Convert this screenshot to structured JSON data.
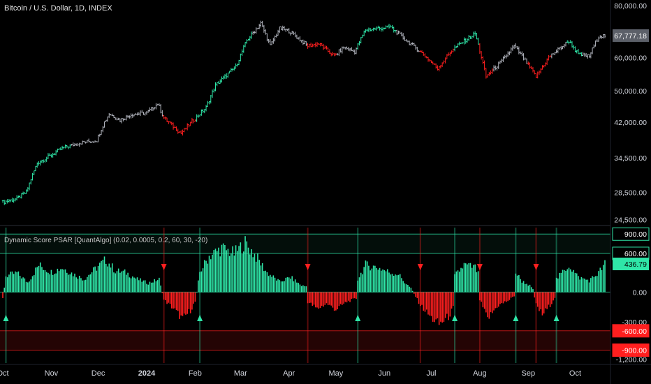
{
  "symbol_title": "Bitcoin / U.S. Dollar, 1D, INDEX",
  "indicator_title": "Dynamic Score PSAR [QuantAlgo] (0.02, 0.0005, 0.2, 60, 30, -20)",
  "colors": {
    "bull": "#2fe6a8",
    "bear": "#ff1f1f",
    "neutral": "#b2b5be",
    "axis_text": "#d1d4dc",
    "last_price_bg": "#5c6069"
  },
  "chart_data": [
    {
      "type": "ohlc",
      "title": "Bitcoin / U.S. Dollar, 1D, INDEX",
      "y_scale": "log",
      "ylim": [
        24000,
        80000
      ],
      "y_ticks": [
        {
          "value": 80000,
          "label": "80,000.00"
        },
        {
          "value": 60000,
          "label": "60,000.00"
        },
        {
          "value": 50000,
          "label": "50,000.00"
        },
        {
          "value": 42000,
          "label": "42,000.00"
        },
        {
          "value": 34500,
          "label": "34,500.00"
        },
        {
          "value": 28500,
          "label": "28,500.00"
        },
        {
          "value": 24500,
          "label": "24,500.00"
        }
      ],
      "last_price": 67777.18,
      "last_price_label": "67,777.18",
      "x_range": [
        "2023-10-01",
        "2024-10-20"
      ],
      "x_ticks": [
        {
          "date": "2023-10-01",
          "label": "Oct"
        },
        {
          "date": "2023-11-01",
          "label": "Nov"
        },
        {
          "date": "2023-12-01",
          "label": "Dec"
        },
        {
          "date": "2024-01-01",
          "label": "2024"
        },
        {
          "date": "2024-02-01",
          "label": "Feb"
        },
        {
          "date": "2024-03-01",
          "label": "Mar"
        },
        {
          "date": "2024-04-01",
          "label": "Apr"
        },
        {
          "date": "2024-05-01",
          "label": "May"
        },
        {
          "date": "2024-06-01",
          "label": "Jun"
        },
        {
          "date": "2024-07-01",
          "label": "Jul"
        },
        {
          "date": "2024-08-01",
          "label": "Aug"
        },
        {
          "date": "2024-09-01",
          "label": "Sep"
        },
        {
          "date": "2024-10-01",
          "label": "Oct"
        }
      ],
      "close_anchors": [
        [
          "2023-10-01",
          27000
        ],
        [
          "2023-10-10",
          27500
        ],
        [
          "2023-10-16",
          28500
        ],
        [
          "2023-10-23",
          33500
        ],
        [
          "2023-11-01",
          35000
        ],
        [
          "2023-11-09",
          36500
        ],
        [
          "2023-11-20",
          37500
        ],
        [
          "2023-11-30",
          38000
        ],
        [
          "2023-12-05",
          42000
        ],
        [
          "2023-12-08",
          44000
        ],
        [
          "2023-12-15",
          42500
        ],
        [
          "2023-12-22",
          43800
        ],
        [
          "2024-01-01",
          44200
        ],
        [
          "2024-01-08",
          46500
        ],
        [
          "2024-01-12",
          43000
        ],
        [
          "2024-01-18",
          41000
        ],
        [
          "2024-01-23",
          39500
        ],
        [
          "2024-01-31",
          42500
        ],
        [
          "2024-02-08",
          45500
        ],
        [
          "2024-02-14",
          51500
        ],
        [
          "2024-02-27",
          57000
        ],
        [
          "2024-03-05",
          66000
        ],
        [
          "2024-03-14",
          72500
        ],
        [
          "2024-03-20",
          64000
        ],
        [
          "2024-03-26",
          70500
        ],
        [
          "2024-04-01",
          69500
        ],
        [
          "2024-04-13",
          64000
        ],
        [
          "2024-04-20",
          64800
        ],
        [
          "2024-04-30",
          60500
        ],
        [
          "2024-05-06",
          63500
        ],
        [
          "2024-05-13",
          62000
        ],
        [
          "2024-05-20",
          70000
        ],
        [
          "2024-06-05",
          71000
        ],
        [
          "2024-06-15",
          66000
        ],
        [
          "2024-06-25",
          61500
        ],
        [
          "2024-07-05",
          56500
        ],
        [
          "2024-07-15",
          63000
        ],
        [
          "2024-07-29",
          68500
        ],
        [
          "2024-08-05",
          54000
        ],
        [
          "2024-08-15",
          58800
        ],
        [
          "2024-08-23",
          64000
        ],
        [
          "2024-09-06",
          54000
        ],
        [
          "2024-09-14",
          60000
        ],
        [
          "2024-09-27",
          65800
        ],
        [
          "2024-10-03",
          61000
        ],
        [
          "2024-10-10",
          60500
        ],
        [
          "2024-10-16",
          67500
        ],
        [
          "2024-10-20",
          67777
        ]
      ],
      "color_segments": [
        {
          "from": "2023-10-01",
          "to": "2023-11-13",
          "color": "bull"
        },
        {
          "from": "2023-11-14",
          "to": "2023-12-08",
          "color": "neutral"
        },
        {
          "from": "2023-12-09",
          "to": "2024-01-11",
          "color": "neutral"
        },
        {
          "from": "2024-01-12",
          "to": "2024-02-01",
          "color": "bear"
        },
        {
          "from": "2024-02-02",
          "to": "2024-03-08",
          "color": "bull"
        },
        {
          "from": "2024-03-09",
          "to": "2024-04-12",
          "color": "neutral"
        },
        {
          "from": "2024-04-13",
          "to": "2024-05-01",
          "color": "bear"
        },
        {
          "from": "2024-05-02",
          "to": "2024-05-14",
          "color": "neutral"
        },
        {
          "from": "2024-05-15",
          "to": "2024-06-08",
          "color": "bull"
        },
        {
          "from": "2024-06-09",
          "to": "2024-06-23",
          "color": "neutral"
        },
        {
          "from": "2024-06-24",
          "to": "2024-07-15",
          "color": "bear"
        },
        {
          "from": "2024-07-16",
          "to": "2024-07-31",
          "color": "bull"
        },
        {
          "from": "2024-08-01",
          "to": "2024-08-09",
          "color": "bear"
        },
        {
          "from": "2024-08-10",
          "to": "2024-08-31",
          "color": "neutral"
        },
        {
          "from": "2024-09-01",
          "to": "2024-09-15",
          "color": "bear"
        },
        {
          "from": "2024-09-16",
          "to": "2024-09-25",
          "color": "neutral"
        },
        {
          "from": "2024-09-26",
          "to": "2024-10-05",
          "color": "bull"
        },
        {
          "from": "2024-10-06",
          "to": "2024-10-20",
          "color": "neutral"
        }
      ]
    },
    {
      "type": "bar",
      "title": "Dynamic Score PSAR [QuantAlgo] (0.02, 0.0005, 0.2, 60, 30, -20)",
      "ylim": [
        -1100,
        1000
      ],
      "y_ticks": [
        {
          "value": 900,
          "label": "900.00",
          "boxed": "bull"
        },
        {
          "value": 600,
          "label": "600.00",
          "boxed": "bull"
        },
        {
          "value": 0,
          "label": "0.00"
        },
        {
          "value": -600,
          "label": "-600.00",
          "boxed": "bear"
        },
        {
          "value": -900,
          "label": "-900.00",
          "boxed": "bear"
        }
      ],
      "partial_tick_labels": [
        "-300.00",
        "-1,200.00"
      ],
      "last_value": 436.79,
      "last_value_label": "436.79",
      "levels": [
        900,
        600,
        -600,
        -900
      ],
      "score_anchors": [
        [
          "2023-10-01",
          -100
        ],
        [
          "2023-10-03",
          250
        ],
        [
          "2023-10-10",
          300
        ],
        [
          "2023-10-17",
          150
        ],
        [
          "2023-10-24",
          420
        ],
        [
          "2023-11-01",
          310
        ],
        [
          "2023-11-08",
          380
        ],
        [
          "2023-11-15",
          280
        ],
        [
          "2023-11-22",
          200
        ],
        [
          "2023-11-30",
          380
        ],
        [
          "2023-12-06",
          500
        ],
        [
          "2023-12-12",
          330
        ],
        [
          "2023-12-19",
          300
        ],
        [
          "2023-12-26",
          200
        ],
        [
          "2024-01-02",
          140
        ],
        [
          "2024-01-09",
          200
        ],
        [
          "2024-01-12",
          -120
        ],
        [
          "2024-01-18",
          -250
        ],
        [
          "2024-01-24",
          -420
        ],
        [
          "2024-01-29",
          -280
        ],
        [
          "2024-02-01",
          -150
        ],
        [
          "2024-02-04",
          310
        ],
        [
          "2024-02-10",
          560
        ],
        [
          "2024-02-18",
          680
        ],
        [
          "2024-02-26",
          600
        ],
        [
          "2024-03-04",
          760
        ],
        [
          "2024-03-11",
          550
        ],
        [
          "2024-03-18",
          300
        ],
        [
          "2024-03-26",
          160
        ],
        [
          "2024-04-02",
          230
        ],
        [
          "2024-04-09",
          100
        ],
        [
          "2024-04-12",
          90
        ],
        [
          "2024-04-13",
          -150
        ],
        [
          "2024-04-19",
          -260
        ],
        [
          "2024-04-25",
          -180
        ],
        [
          "2024-05-01",
          -270
        ],
        [
          "2024-05-08",
          -150
        ],
        [
          "2024-05-14",
          -100
        ],
        [
          "2024-05-15",
          200
        ],
        [
          "2024-05-20",
          420
        ],
        [
          "2024-05-28",
          380
        ],
        [
          "2024-06-05",
          300
        ],
        [
          "2024-06-10",
          280
        ],
        [
          "2024-06-14",
          150
        ],
        [
          "2024-06-18",
          60
        ],
        [
          "2024-06-24",
          -200
        ],
        [
          "2024-07-01",
          -400
        ],
        [
          "2024-07-06",
          -500
        ],
        [
          "2024-07-12",
          -380
        ],
        [
          "2024-07-15",
          -250
        ],
        [
          "2024-07-16",
          250
        ],
        [
          "2024-07-22",
          420
        ],
        [
          "2024-07-29",
          380
        ],
        [
          "2024-07-31",
          280
        ],
        [
          "2024-08-01",
          -120
        ],
        [
          "2024-08-06",
          -420
        ],
        [
          "2024-08-12",
          -220
        ],
        [
          "2024-08-20",
          -120
        ],
        [
          "2024-08-23",
          -60
        ],
        [
          "2024-08-24",
          300
        ],
        [
          "2024-08-28",
          170
        ],
        [
          "2024-09-02",
          100
        ],
        [
          "2024-09-04",
          40
        ],
        [
          "2024-09-06",
          -200
        ],
        [
          "2024-09-10",
          -350
        ],
        [
          "2024-09-15",
          -200
        ],
        [
          "2024-09-18",
          -80
        ],
        [
          "2024-09-19",
          200
        ],
        [
          "2024-09-27",
          420
        ],
        [
          "2024-10-03",
          230
        ],
        [
          "2024-10-10",
          180
        ],
        [
          "2024-10-16",
          300
        ],
        [
          "2024-10-20",
          437
        ]
      ],
      "signals": [
        {
          "date": "2023-10-03",
          "type": "up"
        },
        {
          "date": "2024-01-12",
          "type": "down"
        },
        {
          "date": "2024-02-04",
          "type": "up"
        },
        {
          "date": "2024-04-13",
          "type": "down"
        },
        {
          "date": "2024-05-15",
          "type": "up"
        },
        {
          "date": "2024-06-24",
          "type": "down"
        },
        {
          "date": "2024-07-16",
          "type": "up"
        },
        {
          "date": "2024-08-01",
          "type": "down"
        },
        {
          "date": "2024-08-24",
          "type": "up"
        },
        {
          "date": "2024-09-06",
          "type": "down"
        },
        {
          "date": "2024-09-19",
          "type": "up"
        }
      ]
    }
  ]
}
